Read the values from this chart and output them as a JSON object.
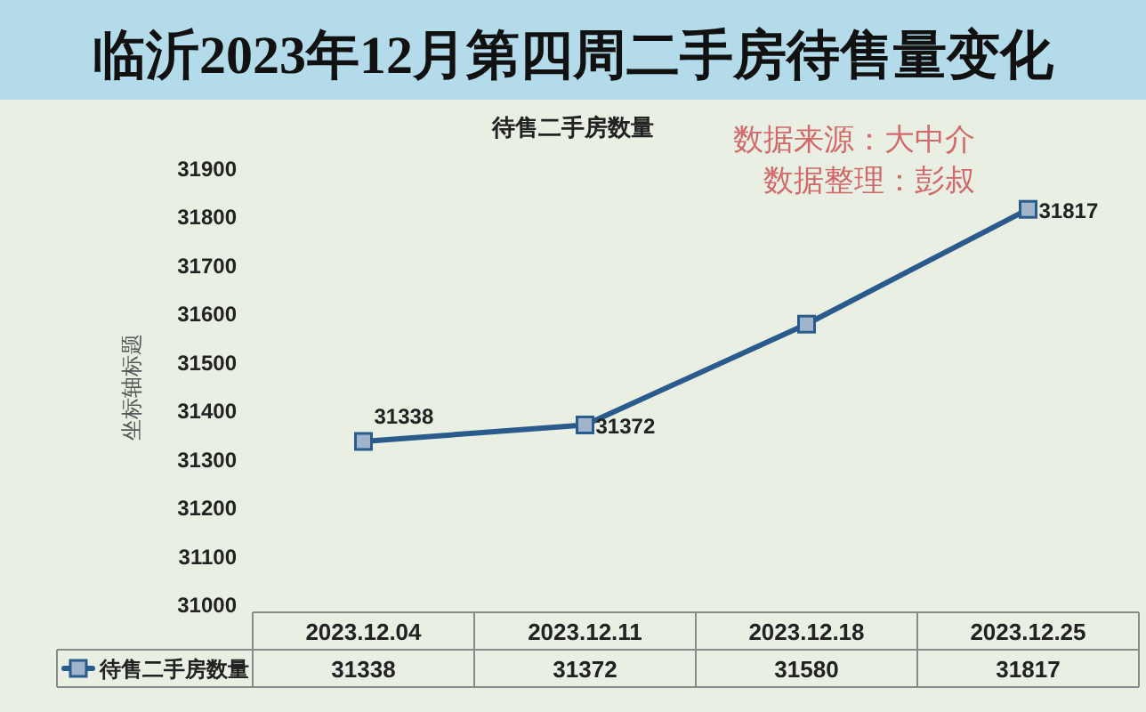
{
  "chart_data": {
    "type": "line",
    "title": "临沂2023年12月第四周二手房待售量变化",
    "subtitle": "待售二手房数量",
    "ylabel": "坐标轴标题",
    "annotations": [
      "数据来源：大中介",
      "数据整理：彭叔",
      {
        "text": "31338",
        "x": "2023.12.04",
        "y": 31338
      },
      {
        "text": "31372",
        "x": "2023.12.11",
        "y": 31372
      },
      {
        "text": "31817",
        "x": "2023.12.25",
        "y": 31817
      }
    ],
    "categories": [
      "2023.12.04",
      "2023.12.11",
      "2023.12.18",
      "2023.12.25"
    ],
    "series": [
      {
        "name": "待售二手房数量",
        "color": "#2b5b8c",
        "values": [
          31338,
          31372,
          31580,
          31817
        ]
      }
    ],
    "ylim": [
      31000,
      31900
    ],
    "yticks": [
      31000,
      31100,
      31200,
      31300,
      31400,
      31500,
      31600,
      31700,
      31800,
      31900
    ],
    "legend": "bottom",
    "marker": "square",
    "line_style": "solid",
    "data_labels": true
  }
}
